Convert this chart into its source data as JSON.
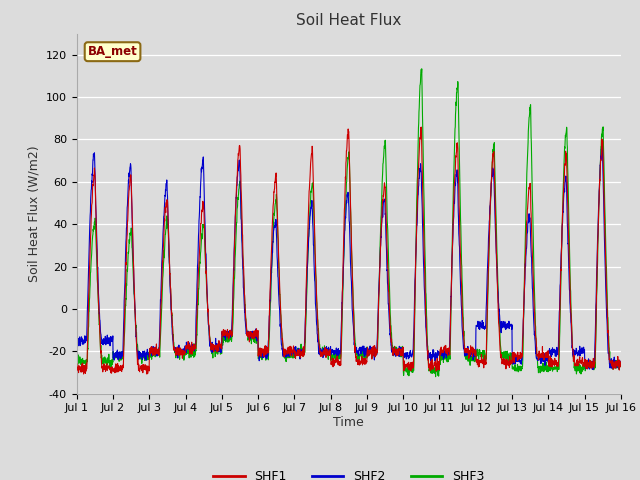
{
  "title": "Soil Heat Flux",
  "ylabel": "Soil Heat Flux (W/m2)",
  "xlabel": "Time",
  "ylim": [
    -40,
    130
  ],
  "yticks": [
    -40,
    -20,
    0,
    20,
    40,
    60,
    80,
    100,
    120
  ],
  "background_color": "#dcdcdc",
  "plot_bg_color": "#dcdcdc",
  "legend_label": "BA_met",
  "series_colors": {
    "SHF1": "#cc0000",
    "SHF2": "#0000cc",
    "SHF3": "#00aa00"
  },
  "n_days": 15,
  "points_per_day": 144,
  "xtick_labels": [
    "Jul 1",
    "Jul 2",
    "Jul 3",
    "Jul 4",
    "Jul 5",
    "Jul 6",
    "Jul 7",
    "Jul 8",
    "Jul 9",
    "Jul 10",
    "Jul 11",
    "Jul 12",
    "Jul 13",
    "Jul 14",
    "Jul 15",
    "Jul 16"
  ],
  "shf1_data": [
    [
      -28,
      -28,
      65,
      -28,
      -28
    ],
    [
      -28,
      -28,
      63,
      -28,
      -28
    ],
    [
      -20,
      -20,
      52,
      -22,
      -20
    ],
    [
      -18,
      -12,
      50,
      -18,
      -18
    ],
    [
      -12,
      -10,
      77,
      -12,
      -12
    ],
    [
      -20,
      -20,
      63,
      -21,
      -20
    ],
    [
      -21,
      -21,
      75,
      -21,
      -21
    ],
    [
      -25,
      -25,
      85,
      -25,
      -25
    ],
    [
      -20,
      -20,
      59,
      -20,
      -20
    ],
    [
      -27,
      -27,
      85,
      -27,
      -27
    ],
    [
      -20,
      -20,
      78,
      -20,
      -20
    ],
    [
      -25,
      -25,
      74,
      -25,
      -25
    ],
    [
      -22,
      -22,
      59,
      -22,
      -22
    ],
    [
      -25,
      -25,
      73,
      -25,
      -25
    ],
    [
      -26,
      -26,
      79,
      -26,
      -26
    ]
  ],
  "shf2_data": [
    [
      -15,
      -15,
      73,
      -15,
      -15
    ],
    [
      -22,
      -22,
      68,
      -22,
      -22
    ],
    [
      -20,
      -20,
      59,
      -20,
      -20
    ],
    [
      -18,
      -18,
      71,
      -18,
      -18
    ],
    [
      -12,
      -12,
      70,
      -12,
      -12
    ],
    [
      -21,
      -21,
      42,
      -21,
      -21
    ],
    [
      -20,
      -20,
      49,
      -20,
      -20
    ],
    [
      -20,
      -20,
      55,
      -20,
      -20
    ],
    [
      -20,
      -20,
      53,
      -20,
      -20
    ],
    [
      -22,
      -22,
      68,
      -22,
      -22
    ],
    [
      -21,
      -21,
      65,
      -21,
      -21
    ],
    [
      -8,
      -8,
      66,
      -8,
      -8
    ],
    [
      -24,
      -5,
      44,
      -24,
      -24
    ],
    [
      -20,
      -20,
      62,
      -20,
      -20
    ],
    [
      -26,
      -26,
      76,
      -26,
      -26
    ]
  ],
  "shf3_data": [
    [
      -25,
      -25,
      42,
      -25,
      -25
    ],
    [
      -22,
      -22,
      37,
      -22,
      -22
    ],
    [
      -21,
      -21,
      42,
      -21,
      -21
    ],
    [
      -20,
      -20,
      40,
      -20,
      -20
    ],
    [
      -14,
      -14,
      60,
      -14,
      -14
    ],
    [
      -22,
      -22,
      53,
      -22,
      -22
    ],
    [
      -20,
      -20,
      60,
      -20,
      -20
    ],
    [
      -22,
      -22,
      73,
      -22,
      -22
    ],
    [
      -20,
      -20,
      79,
      -20,
      -20
    ],
    [
      -29,
      -29,
      113,
      -29,
      -29
    ],
    [
      -23,
      -23,
      106,
      -23,
      -23
    ],
    [
      -22,
      -22,
      77,
      -22,
      -22
    ],
    [
      -28,
      -28,
      95,
      -28,
      -28
    ],
    [
      -28,
      -28,
      85,
      -28,
      -28
    ],
    [
      -27,
      -27,
      86,
      -27,
      -27
    ]
  ]
}
